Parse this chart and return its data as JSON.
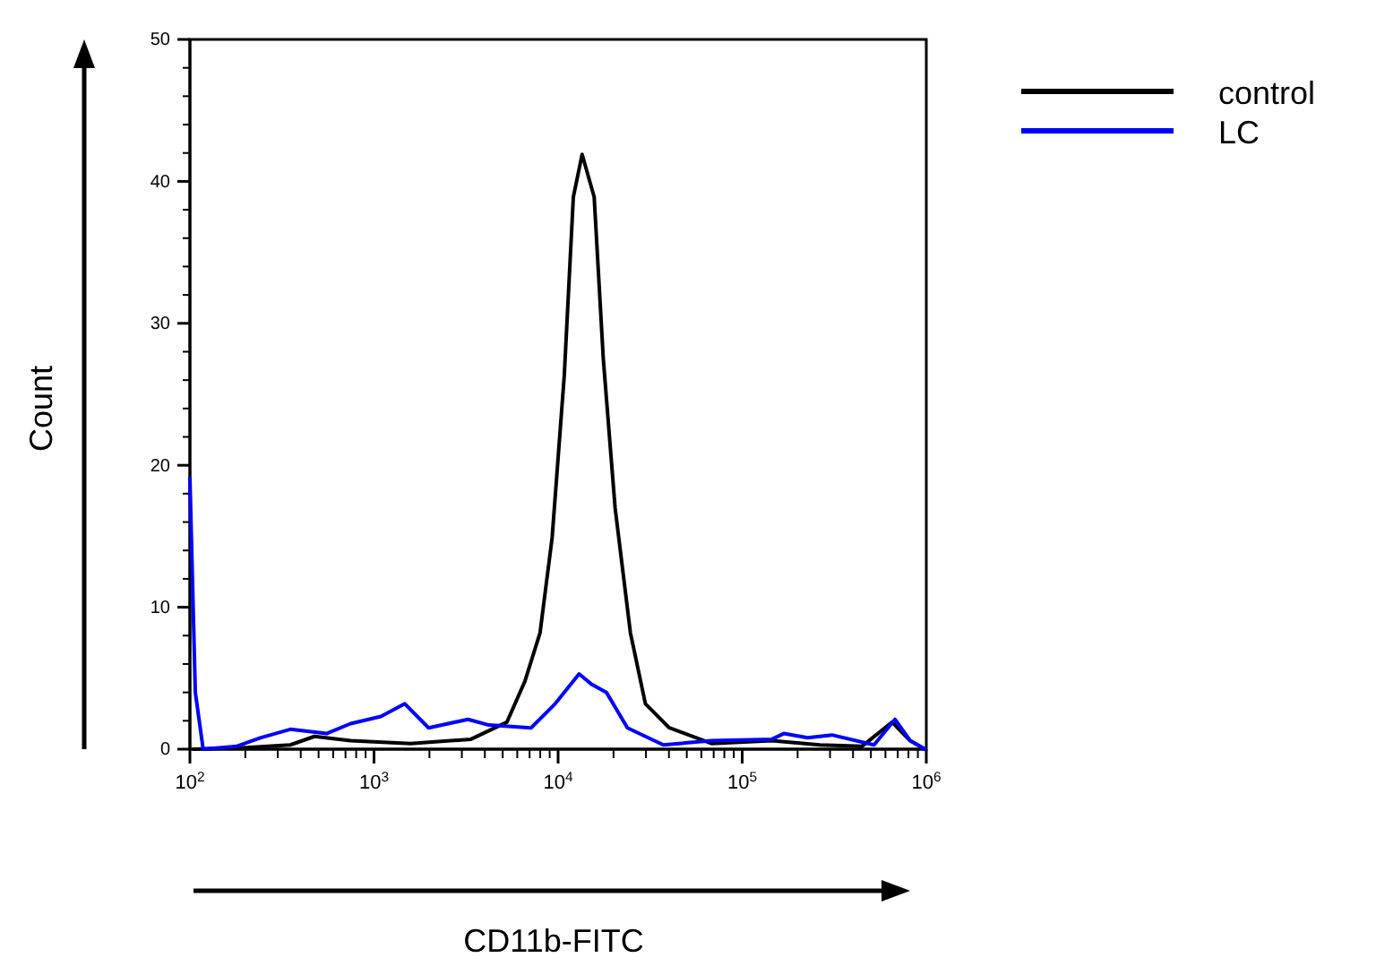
{
  "chart_data": {
    "type": "line",
    "xlabel": "CD11b-FITC",
    "ylabel": "Count",
    "log": "x",
    "legend": "top right",
    "grid": false,
    "marker": "none",
    "line_style": "solid",
    "xlim": [
      100,
      1000000
    ],
    "xticks": [
      {
        "value": 100,
        "label": "10$^{2}$"
      },
      {
        "value": 200,
        "label": null
      },
      {
        "value": 300,
        "label": null
      },
      {
        "value": 400,
        "label": null
      },
      {
        "value": 500,
        "label": null
      },
      {
        "value": 600,
        "label": null
      },
      {
        "value": 700,
        "label": null
      },
      {
        "value": 800,
        "label": null
      },
      {
        "value": 900,
        "label": null
      },
      {
        "value": 1000,
        "label": "10$^{3}$"
      },
      {
        "value": 2000,
        "label": null
      },
      {
        "value": 3000,
        "label": null
      },
      {
        "value": 4000,
        "label": null
      },
      {
        "value": 5000,
        "label": null
      },
      {
        "value": 6000,
        "label": null
      },
      {
        "value": 7000,
        "label": null
      },
      {
        "value": 8000,
        "label": null
      },
      {
        "value": 9000,
        "label": null
      },
      {
        "value": 10000,
        "label": "10$^{4}$"
      },
      {
        "value": 20000,
        "label": null
      },
      {
        "value": 30000,
        "label": null
      },
      {
        "value": 40000,
        "label": null
      },
      {
        "value": 50000,
        "label": null
      },
      {
        "value": 60000,
        "label": null
      },
      {
        "value": 70000,
        "label": null
      },
      {
        "value": 80000,
        "label": null
      },
      {
        "value": 90000,
        "label": null
      },
      {
        "value": 100000,
        "label": "10$^{5}$"
      },
      {
        "value": 200000,
        "label": null
      },
      {
        "value": 300000,
        "label": null
      },
      {
        "value": 400000,
        "label": null
      },
      {
        "value": 500000,
        "label": null
      },
      {
        "value": 600000,
        "label": null
      },
      {
        "value": 700000,
        "label": null
      },
      {
        "value": 800000,
        "label": null
      },
      {
        "value": 900000,
        "label": null
      },
      {
        "value": 1000000,
        "label": "10$^{6}$"
      }
    ],
    "ylim": [
      0,
      50
    ],
    "yticks": [
      0,
      {
        "value": 2,
        "label": null
      },
      {
        "value": 4,
        "label": null
      },
      {
        "value": 6,
        "label": null
      },
      {
        "value": 8,
        "label": null
      },
      10,
      {
        "value": 12,
        "label": null
      },
      {
        "value": 14,
        "label": null
      },
      {
        "value": 16,
        "label": null
      },
      {
        "value": 18,
        "label": null
      },
      20,
      {
        "value": 22,
        "label": null
      },
      {
        "value": 24,
        "label": null
      },
      {
        "value": 26,
        "label": null
      },
      {
        "value": 28,
        "label": null
      },
      30,
      {
        "value": 32,
        "label": null
      },
      {
        "value": 34,
        "label": null
      },
      {
        "value": 36,
        "label": null
      },
      {
        "value": 38,
        "label": null
      },
      40,
      {
        "value": 42,
        "label": null
      },
      {
        "value": 44,
        "label": null
      },
      {
        "value": 46,
        "label": null
      },
      {
        "value": 48,
        "label": null
      },
      50
    ],
    "series": [
      {
        "name": "control",
        "color": "#000000",
        "x": [
          105,
          192,
          351,
          475,
          746,
          1580,
          3360,
          5270,
          6610,
          7980,
          9280,
          10800,
          12100,
          13500,
          15700,
          17600,
          20400,
          24700,
          29800,
          40200,
          68100,
          145000,
          264000,
          447000,
          652000,
          817000,
          984000
        ],
        "values": [
          0,
          0.1,
          0.3,
          0.9,
          0.6,
          0.4,
          0.7,
          1.9,
          4.8,
          8.2,
          14.9,
          26.3,
          38.9,
          41.9,
          38.9,
          27.5,
          17,
          8.2,
          3.2,
          1.5,
          0.4,
          0.6,
          0.3,
          0.2,
          1.9,
          0.6,
          0
        ]
      },
      {
        "name": "LC",
        "color": "#0000ff",
        "x": [
          100,
          107,
          118,
          179,
          241,
          351,
          552,
          746,
          1090,
          1470,
          1980,
          3240,
          4210,
          7130,
          9640,
          13000,
          15100,
          18300,
          23800,
          37300,
          68100,
          145000,
          168000,
          227000,
          307000,
          520000,
          676000,
          817000,
          984000
        ],
        "values": [
          19.1,
          4,
          0,
          0.2,
          0.8,
          1.4,
          1.1,
          1.8,
          2.3,
          3.2,
          1.5,
          2.1,
          1.7,
          1.5,
          3.2,
          5.3,
          4.6,
          4,
          1.5,
          0.3,
          0.6,
          0.7,
          1.1,
          0.8,
          1,
          0.3,
          2.1,
          0.6,
          0
        ]
      }
    ]
  }
}
